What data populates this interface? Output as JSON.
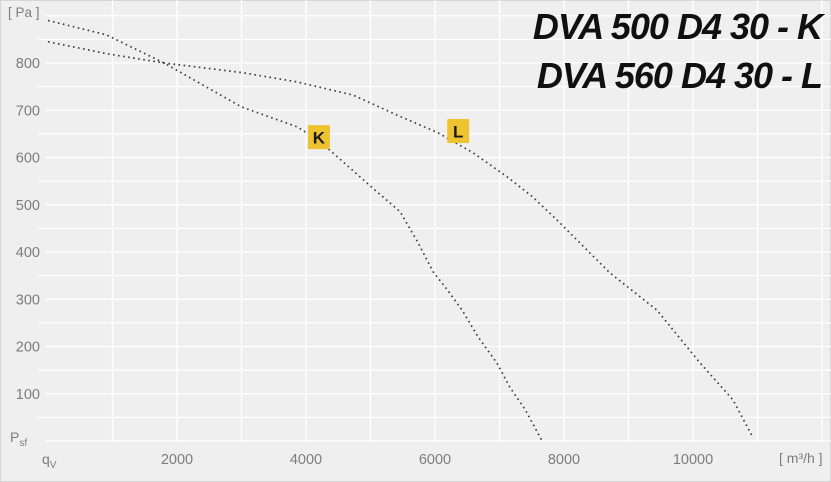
{
  "header": {
    "line1": "DVA 500 D4 30 - K",
    "line2": "DVA 560 D4 30 - L"
  },
  "axes": {
    "pressure_unit": "[ Pa ]",
    "pressure_symbol": "P",
    "pressure_symbol_sub": "sf",
    "flow_symbol": "q",
    "flow_symbol_sub": "V",
    "flow_unit": "[ m³/h ]"
  },
  "colors": {
    "background": "#efefef",
    "grid": "#ffffff",
    "tick_text": "#7d7d7d",
    "curve": "#3c3c3c",
    "badge_bg": "#edc32f",
    "badge_text": "#1a1a1a",
    "title_text": "#101010"
  },
  "chart_data": {
    "type": "line",
    "title": "DVA 500 D4 30 - K / DVA 560 D4 30 - L",
    "xlabel": "qV [ m³/h ]",
    "ylabel": "Psf [ Pa ]",
    "xlim": [
      0,
      12000
    ],
    "ylim": [
      0,
      900
    ],
    "x_ticks": [
      2000,
      4000,
      6000,
      8000,
      10000
    ],
    "y_ticks": [
      100,
      200,
      300,
      400,
      500,
      600,
      700,
      800
    ],
    "grid": {
      "x_step": 1000,
      "y_step": 50,
      "style": "white-on-gray"
    },
    "line_style": "dotted",
    "legend_position": "on-curve-badges",
    "series": [
      {
        "name": "DVA 500 D4 30 - K",
        "marker_label": "K",
        "marker_at": {
          "q": 4200,
          "pa": 643
        },
        "points": [
          [
            0,
            890
          ],
          [
            900,
            860
          ],
          [
            1800,
            800
          ],
          [
            3000,
            707
          ],
          [
            3860,
            665
          ],
          [
            4190,
            637
          ],
          [
            4680,
            578
          ],
          [
            5070,
            531
          ],
          [
            5460,
            485
          ],
          [
            5740,
            419
          ],
          [
            5970,
            358
          ],
          [
            6190,
            320
          ],
          [
            6420,
            277
          ],
          [
            6670,
            220
          ],
          [
            6960,
            165
          ],
          [
            7160,
            114
          ],
          [
            7400,
            66
          ],
          [
            7660,
            0
          ]
        ]
      },
      {
        "name": "DVA 560 D4 30 - L",
        "marker_label": "L",
        "marker_at": {
          "q": 6360,
          "pa": 656
        },
        "points": [
          [
            0,
            845
          ],
          [
            900,
            820
          ],
          [
            1800,
            800
          ],
          [
            3000,
            780
          ],
          [
            3860,
            760
          ],
          [
            4730,
            732
          ],
          [
            5410,
            690
          ],
          [
            6050,
            652
          ],
          [
            6590,
            610
          ],
          [
            7120,
            559
          ],
          [
            7520,
            516
          ],
          [
            7890,
            468
          ],
          [
            8710,
            356
          ],
          [
            9440,
            277
          ],
          [
            10110,
            165
          ],
          [
            10620,
            87
          ],
          [
            10920,
            10
          ]
        ]
      }
    ]
  }
}
